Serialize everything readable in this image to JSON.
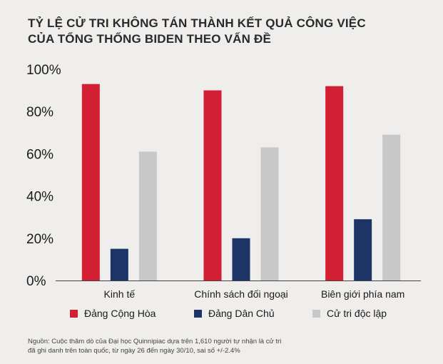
{
  "title": {
    "line1": "TỶ LỆ CỬ TRI KHÔNG TÁN THÀNH KẾT QUẢ CÔNG VIỆC",
    "line2": "CỦA TỔNG THỐNG BIDEN THEO VẤN ĐỀ"
  },
  "source": {
    "line1": "Nguồn: Cuộc thăm dò của Đại học Quinnipiac dựa trên 1,610 người tự nhận là cử tri",
    "line2": "đã ghi danh trên toàn quốc, từ ngày 26 đến ngày 30/10, sai số +/-2.4%"
  },
  "chart_data": {
    "type": "bar",
    "categories": [
      "Kinh tế",
      "Chính sách đối ngoại",
      "Biên giới phía nam"
    ],
    "series": [
      {
        "name": "Đảng Cộng Hòa",
        "color": "#d21f33",
        "values": [
          93,
          90,
          92
        ]
      },
      {
        "name": "Đảng Dân Chủ",
        "color": "#1d3466",
        "values": [
          15,
          20,
          29
        ]
      },
      {
        "name": "Cử tri độc lập",
        "color": "#c8c8c8",
        "values": [
          61,
          63,
          69
        ]
      }
    ],
    "yticks": [
      "0%",
      "20%",
      "40%",
      "60%",
      "80%",
      "100%"
    ],
    "ylim": [
      0,
      100
    ],
    "grid": false,
    "legend": "bottom"
  }
}
